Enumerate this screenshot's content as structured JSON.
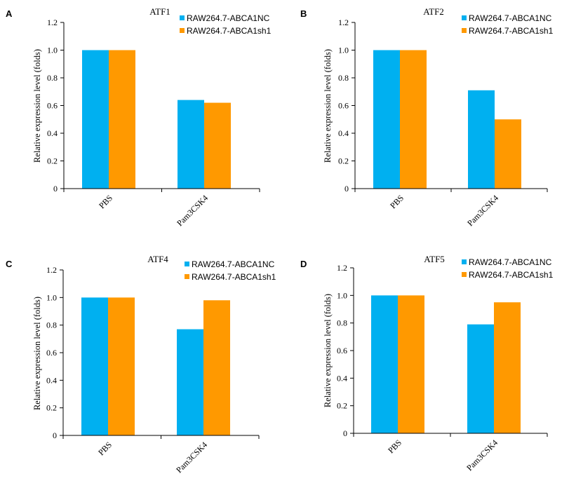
{
  "colors": {
    "series_1": "#00b0f0",
    "series_2": "#ff9900"
  },
  "chart_data": [
    {
      "type": "bar",
      "panel": "A",
      "title": "ATF1",
      "categories": [
        "PBS",
        "Pam3CSK4"
      ],
      "series": [
        {
          "name": "RAW264.7-ABCA1NC",
          "values": [
            1.0,
            0.64
          ]
        },
        {
          "name": "RAW264.7-ABCA1sh1",
          "values": [
            1.0,
            0.62
          ]
        }
      ],
      "ylabel": "Relative expression level (folds)",
      "ylim": [
        0,
        1.2
      ],
      "yticks": [
        "0",
        "0.2",
        "0.4",
        "0.6",
        "0.8",
        "1.0",
        "1.2"
      ],
      "legend": "top-right"
    },
    {
      "type": "bar",
      "panel": "B",
      "title": "ATF2",
      "categories": [
        "PBS",
        "Pam3CSK4"
      ],
      "series": [
        {
          "name": "RAW264.7-ABCA1NC",
          "values": [
            1.0,
            0.71
          ]
        },
        {
          "name": "RAW264.7-ABCA1sh1",
          "values": [
            1.0,
            0.5
          ]
        }
      ],
      "ylabel": "Relative expression level (folds)",
      "ylim": [
        0,
        1.2
      ],
      "yticks": [
        "0",
        "0.2",
        "0.4",
        "0.6",
        "0.8",
        "1.0",
        "1.2"
      ],
      "legend": "top-right"
    },
    {
      "type": "bar",
      "panel": "C",
      "title": "ATF4",
      "categories": [
        "PBS",
        "Pam3CSK4"
      ],
      "series": [
        {
          "name": "RAW264.7-ABCA1NC",
          "values": [
            1.0,
            0.77
          ]
        },
        {
          "name": "RAW264.7-ABCA1sh1",
          "values": [
            1.0,
            0.98
          ]
        }
      ],
      "ylabel": "Relative expression level (folds)",
      "ylim": [
        0,
        1.2
      ],
      "yticks": [
        "0",
        "0.2",
        "0.4",
        "0.6",
        "0.8",
        "1.0",
        "1.2"
      ],
      "legend": "top-right"
    },
    {
      "type": "bar",
      "panel": "D",
      "title": "ATF5",
      "categories": [
        "PBS",
        "Pam3CSK4"
      ],
      "series": [
        {
          "name": "RAW264.7-ABCA1NC",
          "values": [
            1.0,
            0.79
          ]
        },
        {
          "name": "RAW264.7-ABCA1sh1",
          "values": [
            1.0,
            0.95
          ]
        }
      ],
      "ylabel": "Relative expression level (folds)",
      "ylim": [
        0,
        1.2
      ],
      "yticks": [
        "0",
        "0.2",
        "0.4",
        "0.6",
        "0.8",
        "1.0",
        "1.2"
      ],
      "legend": "top-right"
    }
  ]
}
